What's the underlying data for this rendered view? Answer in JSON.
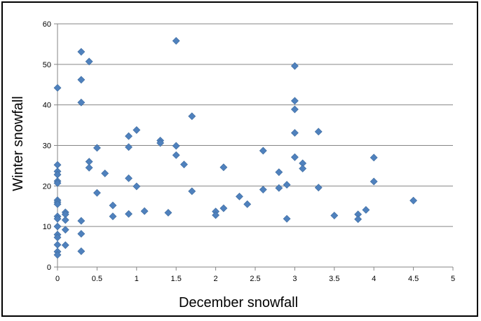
{
  "chart_data": {
    "type": "scatter",
    "title": "",
    "xlabel": "December snowfall",
    "ylabel": "Winter snowfall",
    "xlim": [
      0,
      5
    ],
    "ylim": [
      0,
      60
    ],
    "x_ticks": [
      "0",
      "0.5",
      "1",
      "1.5",
      "2",
      "2.5",
      "3",
      "3.5",
      "4",
      "4.5",
      "5"
    ],
    "y_ticks": [
      "0",
      "10",
      "20",
      "30",
      "40",
      "50",
      "60"
    ],
    "grid": "horizontal",
    "marker_color": "#4f81bd",
    "marker": "diamond",
    "points": [
      [
        0,
        44.2
      ],
      [
        0,
        25.2
      ],
      [
        0,
        23.6
      ],
      [
        0,
        22.8
      ],
      [
        0,
        21.2
      ],
      [
        0,
        20.7
      ],
      [
        0,
        16.5
      ],
      [
        0,
        16.0
      ],
      [
        0,
        15.5
      ],
      [
        0,
        12.5
      ],
      [
        0,
        11.9
      ],
      [
        0,
        10.0
      ],
      [
        0,
        8.0
      ],
      [
        0,
        7.3
      ],
      [
        0,
        5.5
      ],
      [
        0,
        3.8
      ],
      [
        0,
        3.0
      ],
      [
        0.1,
        13.5
      ],
      [
        0.1,
        13.0
      ],
      [
        0.1,
        11.6
      ],
      [
        0.1,
        9.2
      ],
      [
        0.1,
        5.4
      ],
      [
        0.3,
        53.1
      ],
      [
        0.3,
        46.2
      ],
      [
        0.3,
        40.6
      ],
      [
        0.3,
        11.4
      ],
      [
        0.3,
        8.2
      ],
      [
        0.3,
        3.9
      ],
      [
        0.4,
        50.7
      ],
      [
        0.4,
        26.0
      ],
      [
        0.4,
        24.5
      ],
      [
        0.5,
        29.4
      ],
      [
        0.5,
        18.3
      ],
      [
        0.6,
        23.1
      ],
      [
        0.7,
        15.2
      ],
      [
        0.7,
        12.5
      ],
      [
        0.9,
        32.3
      ],
      [
        0.9,
        29.6
      ],
      [
        0.9,
        21.9
      ],
      [
        0.9,
        13.1
      ],
      [
        1.0,
        33.8
      ],
      [
        1.0,
        19.9
      ],
      [
        1.1,
        13.8
      ],
      [
        1.3,
        31.2
      ],
      [
        1.3,
        30.6
      ],
      [
        1.4,
        13.4
      ],
      [
        1.5,
        55.8
      ],
      [
        1.5,
        29.9
      ],
      [
        1.5,
        27.6
      ],
      [
        1.6,
        25.3
      ],
      [
        1.7,
        37.2
      ],
      [
        1.7,
        18.7
      ],
      [
        2.0,
        13.7
      ],
      [
        2.0,
        12.8
      ],
      [
        2.1,
        24.6
      ],
      [
        2.1,
        14.5
      ],
      [
        2.3,
        17.4
      ],
      [
        2.4,
        15.5
      ],
      [
        2.6,
        28.7
      ],
      [
        2.6,
        19.1
      ],
      [
        2.8,
        23.4
      ],
      [
        2.8,
        19.5
      ],
      [
        2.9,
        20.3
      ],
      [
        2.9,
        11.9
      ],
      [
        3.0,
        49.6
      ],
      [
        3.0,
        41.0
      ],
      [
        3.0,
        38.9
      ],
      [
        3.0,
        33.1
      ],
      [
        3.0,
        27.1
      ],
      [
        3.1,
        25.6
      ],
      [
        3.1,
        24.3
      ],
      [
        3.3,
        33.4
      ],
      [
        3.3,
        19.6
      ],
      [
        3.5,
        12.7
      ],
      [
        3.8,
        13.0
      ],
      [
        3.8,
        11.8
      ],
      [
        3.9,
        14.1
      ],
      [
        4.0,
        27.0
      ],
      [
        4.0,
        21.1
      ],
      [
        4.5,
        16.4
      ]
    ]
  }
}
